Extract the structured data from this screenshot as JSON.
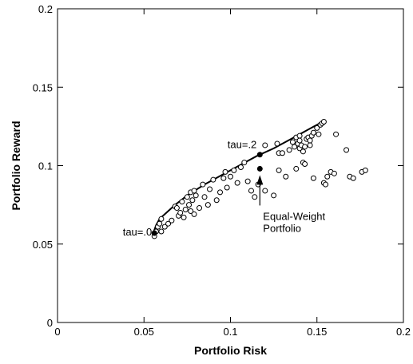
{
  "chart_data": {
    "type": "scatter",
    "xlabel": "Portfolio Risk",
    "ylabel": "Portfolio Reward",
    "xlim": [
      0,
      0.2
    ],
    "ylim": [
      0,
      0.2
    ],
    "xticks": [
      0,
      0.05,
      0.1,
      0.15,
      0.2
    ],
    "xtick_labels": [
      "0",
      "0.05",
      "0.1",
      "0.15",
      "0.2"
    ],
    "yticks": [
      0,
      0.05,
      0.1,
      0.15,
      0.2
    ],
    "ytick_labels": [
      "0",
      "0.05",
      "0.1",
      "0.15",
      "0.2"
    ],
    "grid": false,
    "legend": "none",
    "series": [
      {
        "kind": "scatter-open-circles",
        "points": [
          [
            0.056,
            0.055
          ],
          [
            0.057,
            0.058
          ],
          [
            0.058,
            0.061
          ],
          [
            0.059,
            0.063
          ],
          [
            0.06,
            0.066
          ],
          [
            0.06,
            0.058
          ],
          [
            0.062,
            0.061
          ],
          [
            0.064,
            0.063
          ],
          [
            0.066,
            0.065
          ],
          [
            0.068,
            0.074
          ],
          [
            0.069,
            0.073
          ],
          [
            0.07,
            0.068
          ],
          [
            0.071,
            0.07
          ],
          [
            0.072,
            0.077
          ],
          [
            0.073,
            0.067
          ],
          [
            0.074,
            0.072
          ],
          [
            0.075,
            0.08
          ],
          [
            0.076,
            0.075
          ],
          [
            0.077,
            0.071
          ],
          [
            0.077,
            0.083
          ],
          [
            0.078,
            0.078
          ],
          [
            0.079,
            0.069
          ],
          [
            0.079,
            0.084
          ],
          [
            0.08,
            0.081
          ],
          [
            0.082,
            0.073
          ],
          [
            0.084,
            0.088
          ],
          [
            0.085,
            0.08
          ],
          [
            0.087,
            0.075
          ],
          [
            0.088,
            0.085
          ],
          [
            0.09,
            0.091
          ],
          [
            0.092,
            0.078
          ],
          [
            0.094,
            0.083
          ],
          [
            0.096,
            0.092
          ],
          [
            0.097,
            0.096
          ],
          [
            0.098,
            0.086
          ],
          [
            0.1,
            0.093
          ],
          [
            0.102,
            0.097
          ],
          [
            0.104,
            0.089
          ],
          [
            0.106,
            0.099
          ],
          [
            0.108,
            0.102
          ],
          [
            0.11,
            0.09
          ],
          [
            0.112,
            0.084
          ],
          [
            0.114,
            0.08
          ],
          [
            0.116,
            0.088
          ],
          [
            0.12,
            0.084
          ],
          [
            0.12,
            0.113
          ],
          [
            0.125,
            0.081
          ],
          [
            0.127,
            0.114
          ],
          [
            0.128,
            0.097
          ],
          [
            0.128,
            0.108
          ],
          [
            0.13,
            0.108
          ],
          [
            0.132,
            0.093
          ],
          [
            0.134,
            0.11
          ],
          [
            0.136,
            0.115
          ],
          [
            0.137,
            0.112
          ],
          [
            0.138,
            0.098
          ],
          [
            0.138,
            0.118
          ],
          [
            0.139,
            0.114
          ],
          [
            0.14,
            0.116
          ],
          [
            0.14,
            0.111
          ],
          [
            0.14,
            0.119
          ],
          [
            0.141,
            0.113
          ],
          [
            0.142,
            0.109
          ],
          [
            0.142,
            0.102
          ],
          [
            0.143,
            0.112
          ],
          [
            0.143,
            0.101
          ],
          [
            0.144,
            0.117
          ],
          [
            0.145,
            0.118
          ],
          [
            0.146,
            0.113
          ],
          [
            0.146,
            0.116
          ],
          [
            0.147,
            0.119
          ],
          [
            0.148,
            0.092
          ],
          [
            0.148,
            0.121
          ],
          [
            0.15,
            0.124
          ],
          [
            0.151,
            0.12
          ],
          [
            0.152,
            0.126
          ],
          [
            0.153,
            0.127
          ],
          [
            0.154,
            0.128
          ],
          [
            0.154,
            0.089
          ],
          [
            0.155,
            0.088
          ],
          [
            0.156,
            0.093
          ],
          [
            0.158,
            0.096
          ],
          [
            0.16,
            0.095
          ],
          [
            0.161,
            0.12
          ],
          [
            0.167,
            0.11
          ],
          [
            0.169,
            0.093
          ],
          [
            0.171,
            0.092
          ],
          [
            0.176,
            0.096
          ],
          [
            0.178,
            0.097
          ]
        ]
      },
      {
        "kind": "efficient-frontier-line",
        "points": [
          [
            0.0555,
            0.056
          ],
          [
            0.056,
            0.059
          ],
          [
            0.057,
            0.062
          ],
          [
            0.059,
            0.066
          ],
          [
            0.063,
            0.07
          ],
          [
            0.068,
            0.075
          ],
          [
            0.075,
            0.081
          ],
          [
            0.085,
            0.088
          ],
          [
            0.095,
            0.094
          ],
          [
            0.105,
            0.1
          ],
          [
            0.115,
            0.106
          ],
          [
            0.125,
            0.111
          ],
          [
            0.135,
            0.117
          ],
          [
            0.145,
            0.123
          ],
          [
            0.155,
            0.129
          ]
        ]
      },
      {
        "kind": "highlight-filled",
        "points": [
          [
            0.056,
            0.057
          ],
          [
            0.117,
            0.107
          ],
          [
            0.117,
            0.098
          ]
        ]
      }
    ],
    "annotations": [
      {
        "text": "tau=.0",
        "at": [
          0.056,
          0.057
        ]
      },
      {
        "text": "tau=.2",
        "at": [
          0.117,
          0.107
        ]
      },
      {
        "text_lines": [
          "Equal-Weight",
          "Portfolio"
        ],
        "arrow_to": [
          0.117,
          0.098
        ]
      }
    ]
  }
}
